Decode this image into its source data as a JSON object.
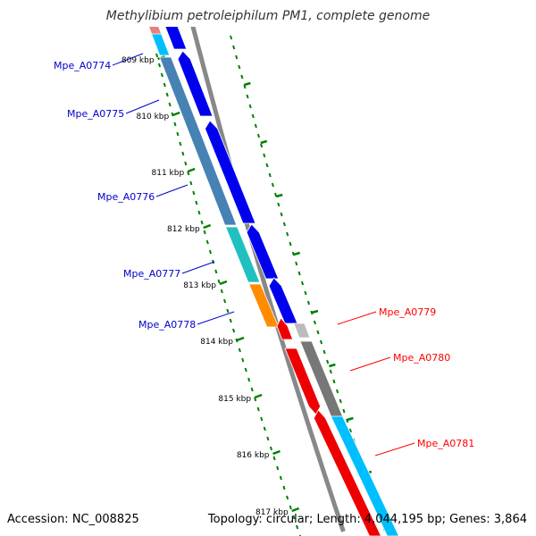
{
  "title": "Methylibium petroleiphilum PM1, complete genome",
  "footer": {
    "accession": "Accession: NC_008825",
    "summary": "Topology: circular; Length: 4,044,195 bp; Genes: 3,864"
  },
  "colors": {
    "forward_label": "#0000cc",
    "reverse_label": "#ff0000",
    "backbone": "#888888",
    "ticks": "#008000",
    "cds_forward": "#0000ee",
    "cds_reverse": "#ee0000",
    "cog_steel": "#4682b4",
    "cog_cyan": "#20c0c0",
    "cog_orange": "#ff8c00",
    "cog_pink": "#e88080",
    "cog_sky": "#00bfff",
    "cog_gray": "#777777",
    "cog_lightgray": "#bbbbbb"
  },
  "tick_labels": [
    "809 kbp",
    "810 kbp",
    "811 kbp",
    "812 kbp",
    "813 kbp",
    "814 kbp",
    "815 kbp",
    "816 kbp",
    "817 kbp"
  ],
  "genes": [
    {
      "name": "Mpe_A0774",
      "strand": "forward"
    },
    {
      "name": "Mpe_A0775",
      "strand": "forward"
    },
    {
      "name": "Mpe_A0776",
      "strand": "forward"
    },
    {
      "name": "Mpe_A0777",
      "strand": "forward"
    },
    {
      "name": "Mpe_A0778",
      "strand": "forward"
    },
    {
      "name": "Mpe_A0779",
      "strand": "reverse"
    },
    {
      "name": "Mpe_A0780",
      "strand": "reverse"
    },
    {
      "name": "Mpe_A0781",
      "strand": "reverse"
    }
  ]
}
